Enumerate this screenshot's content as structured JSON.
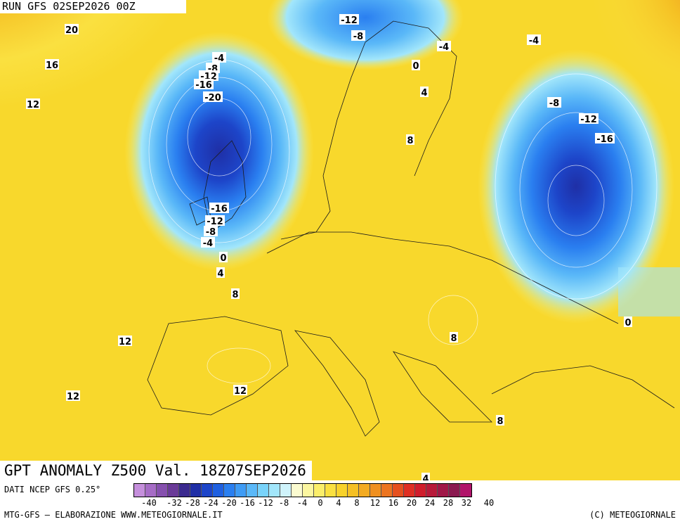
{
  "run_label": "RUN GFS 02SEP2026 00Z",
  "map_title": "GPT ANOMALY Z500 Val. 18Z07SEP2026",
  "source_text": "DATI NCEP GFS 0.25°",
  "credits_left": "MTG-GFS — ELABORAZIONE WWW.METEOGIORNALE.IT",
  "credits_right": "(C) METEOGIORNALE",
  "scale": {
    "tick_labels": [
      "-40",
      "-32",
      "-28",
      "-24",
      "-20",
      "-16",
      "-12",
      "-8",
      "-4",
      "0",
      "4",
      "8",
      "12",
      "16",
      "20",
      "24",
      "28",
      "32",
      "40"
    ],
    "colors": [
      "#c58fdc",
      "#a66cc6",
      "#8650ae",
      "#6a3a98",
      "#3b2a8f",
      "#1f2fa6",
      "#1d45c9",
      "#1f60e0",
      "#2a7ff0",
      "#3f9cf5",
      "#5ab8f8",
      "#79d3fa",
      "#a2e6fb",
      "#cff3fb",
      "#fbfbd0",
      "#fbf6a0",
      "#fbee6a",
      "#fae040",
      "#f8d22a",
      "#f5c024",
      "#f3ab22",
      "#f09020",
      "#ec7420",
      "#e5501f",
      "#df2f23",
      "#d01d2c",
      "#b81a3a",
      "#a01848",
      "#8a1a50",
      "#b0146a"
    ]
  },
  "contour_labels": [
    {
      "text": "20"
    },
    {
      "text": "16"
    },
    {
      "text": "12"
    },
    {
      "text": "-4"
    },
    {
      "text": "-8"
    },
    {
      "text": "-12"
    },
    {
      "text": "-16"
    },
    {
      "text": "-20"
    },
    {
      "text": "-16"
    },
    {
      "text": "-12"
    },
    {
      "text": "-8"
    },
    {
      "text": "-4"
    },
    {
      "text": "0"
    },
    {
      "text": "4"
    },
    {
      "text": "8"
    },
    {
      "text": "-12"
    },
    {
      "text": "-8"
    },
    {
      "text": "-4"
    },
    {
      "text": "0"
    },
    {
      "text": "4"
    },
    {
      "text": "8"
    },
    {
      "text": "-4"
    },
    {
      "text": "-8"
    },
    {
      "text": "-12"
    },
    {
      "text": "-16"
    },
    {
      "text": "0"
    },
    {
      "text": "12"
    },
    {
      "text": "12"
    },
    {
      "text": "8"
    },
    {
      "text": "12"
    },
    {
      "text": "8"
    },
    {
      "text": "4"
    }
  ]
}
